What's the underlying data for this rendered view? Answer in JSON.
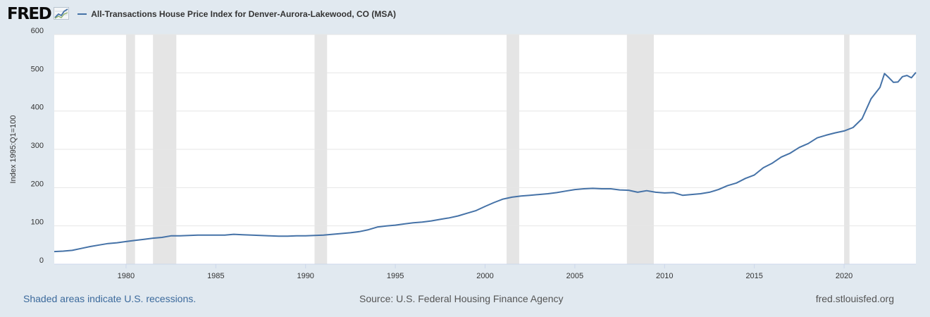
{
  "logo": {
    "text": "FRED"
  },
  "chart_data": {
    "type": "line",
    "title": "",
    "xlabel": "",
    "ylabel": "Index 1995:Q1=100",
    "xlim": [
      1976.0,
      2024.0
    ],
    "ylim": [
      0,
      600
    ],
    "grid": true,
    "legend_position": "top-left",
    "y_ticks": [
      0,
      100,
      200,
      300,
      400,
      500,
      600
    ],
    "x_ticks": [
      1980,
      1985,
      1990,
      1995,
      2000,
      2005,
      2010,
      2015,
      2020
    ],
    "recessions": [
      [
        1980.0,
        1980.5
      ],
      [
        1981.5,
        1982.8
      ],
      [
        1990.5,
        1991.2
      ],
      [
        2001.2,
        2001.9
      ],
      [
        2007.9,
        2009.4
      ],
      [
        2020.0,
        2020.3
      ]
    ],
    "series": [
      {
        "name": "All-Transactions House Price Index for Denver-Aurora-Lakewood, CO (MSA)",
        "color": "#4572a7",
        "x": [
          1976.0,
          1976.5,
          1977.0,
          1977.5,
          1978.0,
          1978.5,
          1979.0,
          1979.5,
          1980.0,
          1980.5,
          1981.0,
          1981.5,
          1982.0,
          1982.5,
          1983.0,
          1983.5,
          1984.0,
          1984.5,
          1985.0,
          1985.5,
          1986.0,
          1986.5,
          1987.0,
          1987.5,
          1988.0,
          1988.5,
          1989.0,
          1989.5,
          1990.0,
          1990.5,
          1991.0,
          1991.5,
          1992.0,
          1992.5,
          1993.0,
          1993.5,
          1994.0,
          1994.5,
          1995.0,
          1995.5,
          1996.0,
          1996.5,
          1997.0,
          1997.5,
          1998.0,
          1998.5,
          1999.0,
          1999.5,
          2000.0,
          2000.5,
          2001.0,
          2001.5,
          2002.0,
          2002.5,
          2003.0,
          2003.5,
          2004.0,
          2004.5,
          2005.0,
          2005.5,
          2006.0,
          2006.5,
          2007.0,
          2007.5,
          2008.0,
          2008.5,
          2009.0,
          2009.5,
          2010.0,
          2010.5,
          2011.0,
          2011.5,
          2012.0,
          2012.5,
          2013.0,
          2013.5,
          2014.0,
          2014.5,
          2015.0,
          2015.5,
          2016.0,
          2016.5,
          2017.0,
          2017.5,
          2018.0,
          2018.5,
          2019.0,
          2019.5,
          2020.0,
          2020.5,
          2021.0,
          2021.5,
          2022.0,
          2022.25,
          2022.5,
          2022.75,
          2023.0,
          2023.25,
          2023.5,
          2023.75,
          2024.0
        ],
        "values": [
          33,
          34,
          36,
          41,
          46,
          50,
          54,
          56,
          59,
          62,
          65,
          68,
          70,
          74,
          74,
          75,
          76,
          76,
          76,
          76,
          78,
          77,
          76,
          75,
          74,
          73,
          73,
          74,
          74,
          75,
          76,
          78,
          80,
          82,
          85,
          90,
          97,
          100,
          102,
          105,
          108,
          110,
          113,
          117,
          121,
          126,
          133,
          140,
          151,
          161,
          170,
          175,
          178,
          180,
          182,
          184,
          187,
          191,
          195,
          197,
          198,
          197,
          197,
          194,
          193,
          188,
          192,
          188,
          186,
          187,
          180,
          182,
          184,
          188,
          195,
          205,
          212,
          224,
          233,
          252,
          264,
          280,
          290,
          305,
          315,
          330,
          337,
          343,
          348,
          357,
          380,
          432,
          462,
          498,
          487,
          475,
          476,
          490,
          493,
          487,
          501
        ]
      }
    ]
  },
  "footer": {
    "note": "Shaded areas indicate U.S. recessions.",
    "source": "Source: U.S. Federal Housing Finance Agency",
    "url": "fred.stlouisfed.org"
  }
}
